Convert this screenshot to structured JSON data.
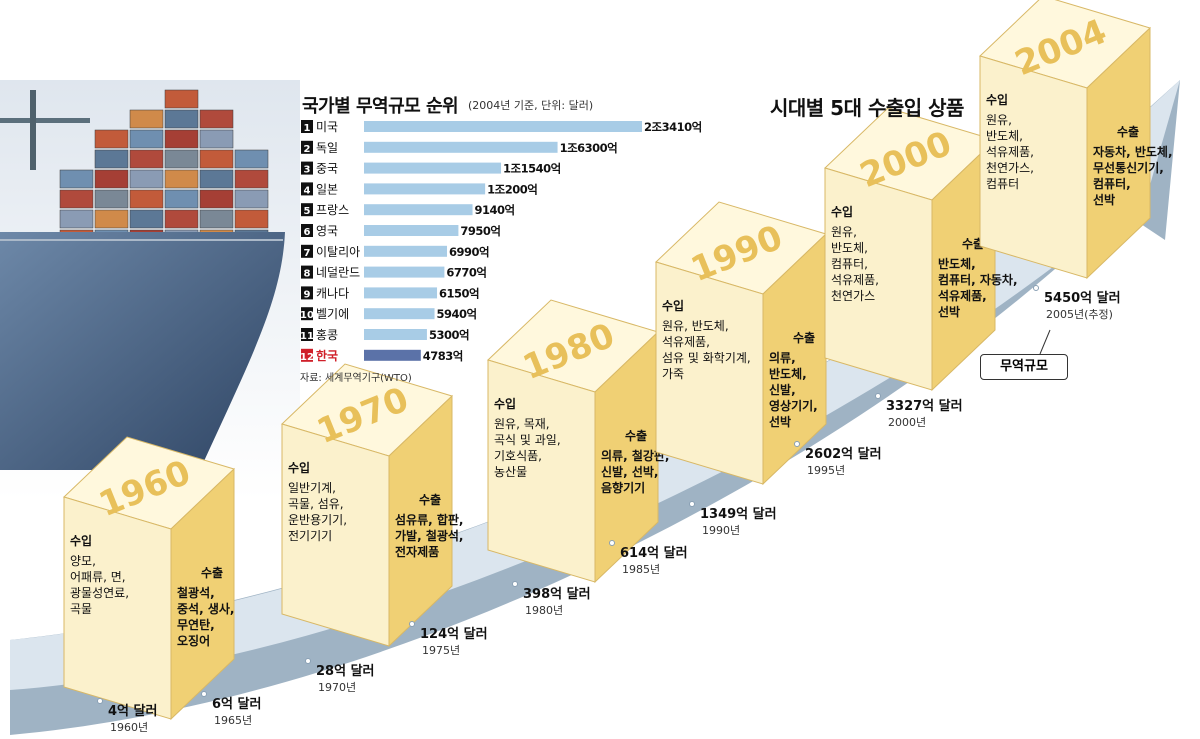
{
  "chart_data": [
    {
      "type": "bar",
      "title": "국가별 무역규모 순위",
      "subtitle": "(2004년 기준, 단위: 달러)",
      "source": "자료: 세계무역기구(WTO)",
      "unit": "억 달러",
      "ranks": [
        "1",
        "2",
        "3",
        "4",
        "5",
        "6",
        "7",
        "8",
        "9",
        "10",
        "11",
        "12"
      ],
      "categories": [
        "미국",
        "독일",
        "중국",
        "일본",
        "프랑스",
        "영국",
        "이탈리아",
        "네덜란드",
        "캐나다",
        "벨기에",
        "홍콩",
        "한국"
      ],
      "values": [
        23410,
        16300,
        11540,
        10200,
        9140,
        7950,
        6990,
        6770,
        6150,
        5940,
        5300,
        4783
      ],
      "value_labels": [
        "2조3410억",
        "1조6300억",
        "1조1540억",
        "1조200억",
        "9140억",
        "7950억",
        "6990억",
        "6770억",
        "6150억",
        "5940억",
        "5300억",
        "4783억"
      ],
      "highlight": "한국"
    },
    {
      "type": "line",
      "title": "시대별 5대 수출입 상품",
      "legend": "무역규모",
      "x": [
        1960,
        1965,
        1970,
        1975,
        1980,
        1985,
        1990,
        1995,
        2000,
        2005
      ],
      "values": [
        4,
        6,
        28,
        124,
        398,
        614,
        1349,
        2602,
        3327,
        5450
      ],
      "value_labels": [
        "4억 달러",
        "6억 달러",
        "28억 달러",
        "124억 달러",
        "398억 달러",
        "614억 달러",
        "1349억 달러",
        "2602억 달러",
        "3327억 달러",
        "5450억 달러"
      ],
      "year_labels": [
        "1960년",
        "1965년",
        "1970년",
        "1975년",
        "1980년",
        "1985년",
        "1990년",
        "1995년",
        "2000년",
        "2005년(추정)"
      ]
    }
  ],
  "decades": [
    {
      "year": "1960",
      "import_label": "수입",
      "imports": [
        "양모,",
        "어패류, 면,",
        "광물성연료,",
        "곡물"
      ],
      "export_label": "수출",
      "exports": [
        "철광석,",
        "중석, 생사,",
        "무연탄,",
        "오징어"
      ]
    },
    {
      "year": "1970",
      "import_label": "수입",
      "imports": [
        "일반기계,",
        "곡물, 섬유,",
        "운반용기기,",
        "전기기기"
      ],
      "export_label": "수출",
      "exports": [
        "섬유류, 합판,",
        "가발, 철광석,",
        "전자제품"
      ]
    },
    {
      "year": "1980",
      "import_label": "수입",
      "imports": [
        "원유, 목재,",
        "곡식 및 과일,",
        "기호식품,",
        "농산물"
      ],
      "export_label": "수출",
      "exports": [
        "의류, 철강판,",
        "신발, 선박,",
        "음향기기"
      ]
    },
    {
      "year": "1990",
      "import_label": "수입",
      "imports": [
        "원유, 반도체,",
        "석유제품,",
        "섬유 및 화학기계,",
        "가죽"
      ],
      "export_label": "수출",
      "exports": [
        "의류,",
        "반도체,",
        "신발,",
        "영상기기,",
        "선박"
      ]
    },
    {
      "year": "2000",
      "import_label": "수입",
      "imports": [
        "원유,",
        "반도체,",
        "컴퓨터,",
        "석유제품,",
        "천연가스"
      ],
      "export_label": "수출",
      "exports": [
        "반도체,",
        "컴퓨터, 자동차,",
        "석유제품,",
        "선박"
      ]
    },
    {
      "year": "2004",
      "import_label": "수입",
      "imports": [
        "원유,",
        "반도체,",
        "석유제품,",
        "천연가스,",
        "컴퓨터"
      ],
      "export_label": "수출",
      "exports": [
        "자동차, 반도체,",
        "무선통신기기,",
        "컴퓨터,",
        "선박"
      ]
    }
  ],
  "colors": {
    "bar": "#a8cce6",
    "bar_highlight": "#5b72a8",
    "highlight_text": "#d0202a",
    "cube_front": "#fbf1cc",
    "cube_top": "#fff8dd",
    "cube_side": "#f0d074",
    "cube_year": "#e8c05a",
    "arrow_top": "#dbe5ee",
    "arrow_side": "#9fb3c4"
  }
}
